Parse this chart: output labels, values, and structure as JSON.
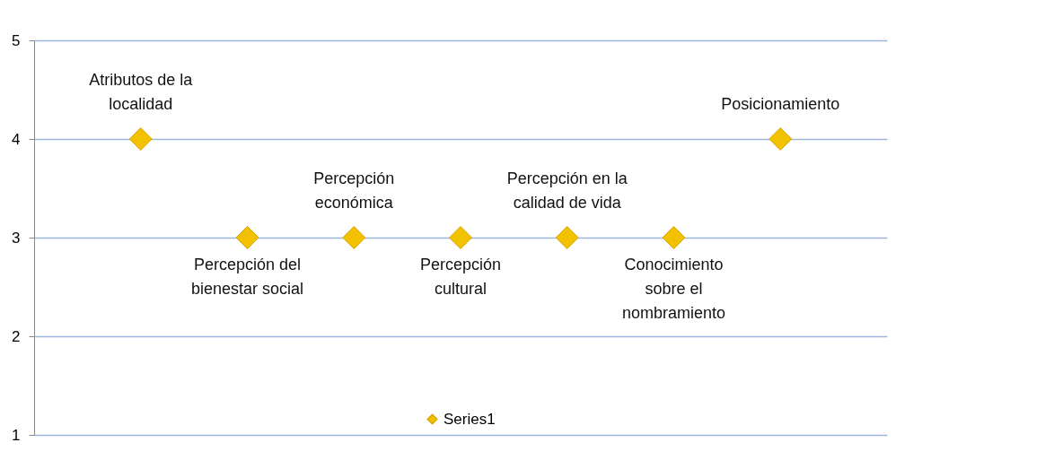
{
  "chart_data": {
    "type": "scatter",
    "categories": [
      "Atributos de la localidad",
      "Percepción del bienestar social",
      "Percepción económica",
      "Percepción cultural",
      "Percepción en la calidad de vida",
      "Conocimiento sobre el nombramiento",
      "Posicionamiento"
    ],
    "series": [
      {
        "name": "Series1",
        "color": "#f2c200",
        "values": [
          4,
          3,
          3,
          3,
          3,
          3,
          4
        ]
      }
    ],
    "ylim": [
      1,
      5
    ],
    "yticks": [
      1,
      2,
      3,
      4,
      5
    ],
    "grid": "y",
    "legend": "bottom",
    "marker": "diamond",
    "tick_labels": "y"
  }
}
